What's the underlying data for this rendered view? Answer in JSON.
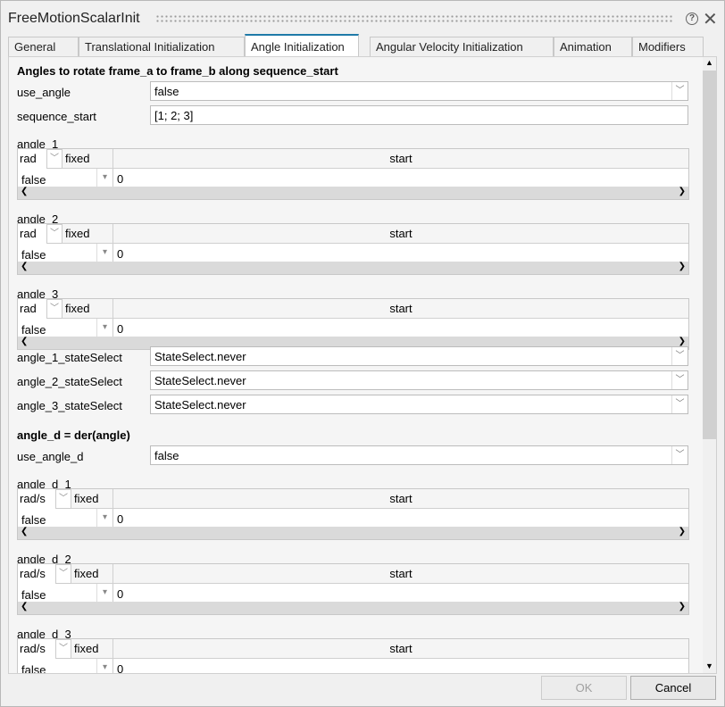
{
  "window": {
    "title": "FreeMotionScalarInit",
    "help_icon": "?",
    "close_icon": "✕"
  },
  "tabs": [
    {
      "label": "General"
    },
    {
      "label": "Translational Initialization"
    },
    {
      "label": "Angle Initialization",
      "active": true
    },
    {
      "label": "Angular Velocity Initialization"
    },
    {
      "label": "Animation"
    },
    {
      "label": "Modifiers"
    }
  ],
  "section1": {
    "heading": "Angles to rotate frame_a to frame_b along sequence_start",
    "use_angle": {
      "label": "use_angle",
      "value": "false"
    },
    "sequence_start": {
      "label": "sequence_start",
      "value": "[1; 2; 3]"
    },
    "tables": [
      {
        "label": "angle_1",
        "unit": "rad",
        "fixed_header": "fixed",
        "start_header": "start",
        "fixed": "false",
        "start": "0"
      },
      {
        "label": "angle_2",
        "unit": "rad",
        "fixed_header": "fixed",
        "start_header": "start",
        "fixed": "false",
        "start": "0"
      },
      {
        "label": "angle_3",
        "unit": "rad",
        "fixed_header": "fixed",
        "start_header": "start",
        "fixed": "false",
        "start": "0"
      }
    ],
    "state_selects": [
      {
        "label": "angle_1_stateSelect",
        "value": "StateSelect.never"
      },
      {
        "label": "angle_2_stateSelect",
        "value": "StateSelect.never"
      },
      {
        "label": "angle_3_stateSelect",
        "value": "StateSelect.never"
      }
    ]
  },
  "section2": {
    "heading": "angle_d = der(angle)",
    "use_angle_d": {
      "label": "use_angle_d",
      "value": "false"
    },
    "tables": [
      {
        "label": "angle_d_1",
        "unit": "rad/s",
        "fixed_header": "fixed",
        "start_header": "start",
        "fixed": "false",
        "start": "0"
      },
      {
        "label": "angle_d_2",
        "unit": "rad/s",
        "fixed_header": "fixed",
        "start_header": "start",
        "fixed": "false",
        "start": "0"
      },
      {
        "label": "angle_d_3",
        "unit": "rad/s",
        "fixed_header": "fixed",
        "start_header": "start",
        "fixed": "false",
        "start": "0"
      }
    ]
  },
  "footer": {
    "ok": "OK",
    "cancel": "Cancel"
  }
}
